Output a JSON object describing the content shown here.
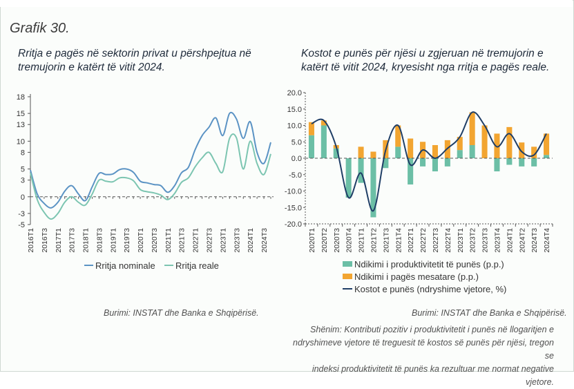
{
  "figure_label": "Grafik 30.",
  "left_panel": {
    "title_line1": "Rritja e pagës në sektorin privat u përshpejtua në",
    "title_line2": "tremujorin e katërt të vitit 2024.",
    "source": "Burimi: INSTAT dhe Banka e Shqipërisë."
  },
  "right_panel": {
    "title_line1": "Kostot e punës për njësi u zgjeruan në tremujorin e",
    "title_line2": "katërt të vitit 2024, kryesisht nga rritja e pagës reale.",
    "source": "Burimi: INSTAT dhe Banka e Shqipërisë.",
    "note_line1": "Shënim: Kontributi pozitiv i produktivitetit i punës në llogaritjen e",
    "note_line2": "ndryshimeve vjetore të treguesit të kostos së punës për njësi, tregon se",
    "note_line3": "indeksi produktivitetit të punës ka rezultuar me normat negative vjetore."
  },
  "colors": {
    "nominal": "#5b93c4",
    "real": "#7cc5b1",
    "productivity": "#6cbfa6",
    "wage": "#f2a531",
    "ulc": "#1f3e66",
    "axis": "#555555"
  },
  "chart_data": [
    {
      "type": "line",
      "ylim": [
        -5,
        18
      ],
      "yticks": [
        -5,
        -3,
        0,
        3,
        5,
        8,
        10,
        13,
        15,
        18
      ],
      "x_tick_labels": [
        "2016T1",
        "2016T3",
        "2017T1",
        "2017T3",
        "2018T1",
        "2018T3",
        "2019T1",
        "2019T3",
        "2020T1",
        "2020T3",
        "2021T1",
        "2021T3",
        "2022T1",
        "2022T3",
        "2023T1",
        "2023T3",
        "2024T1",
        "2024T3"
      ],
      "n_points": 36,
      "series": [
        {
          "name": "Rritja nominale",
          "values": [
            4.8,
            0.5,
            -1.2,
            -2.0,
            -1.0,
            1.0,
            2.0,
            0.5,
            -0.7,
            1.8,
            4.2,
            4.0,
            4.1,
            4.9,
            5.0,
            4.4,
            2.8,
            2.5,
            2.2,
            2.0,
            0.8,
            2.0,
            4.3,
            5.3,
            8.5,
            11.0,
            12.5,
            14.2,
            11.0,
            15.0,
            14.0,
            10.5,
            13.5,
            8.0,
            6.0,
            9.8
          ]
        },
        {
          "name": "Rritja reale",
          "values": [
            4.3,
            -0.5,
            -2.8,
            -4.0,
            -3.0,
            -1.0,
            0.0,
            -1.0,
            -1.5,
            0.5,
            3.0,
            2.8,
            2.7,
            3.4,
            3.4,
            2.9,
            1.3,
            0.9,
            0.7,
            0.3,
            -0.5,
            0.6,
            2.6,
            3.4,
            5.4,
            7.0,
            8.0,
            6.0,
            4.5,
            10.5,
            10.6,
            5.0,
            10.0,
            6.0,
            4.0,
            7.7
          ]
        }
      ]
    },
    {
      "type": "bar+line",
      "ylim": [
        -20,
        20
      ],
      "yticks": [
        "20.0",
        "15.0",
        "10.0",
        "5.0",
        "0.0",
        "-5.0",
        "-10.0",
        "-15.0",
        "-20.0"
      ],
      "categories": [
        "2020T1",
        "2020T2",
        "2020T3",
        "2020T4",
        "2021T1",
        "2021T2",
        "2021T3",
        "2021T4",
        "2022T1",
        "2022T2",
        "2022T3",
        "2022T4",
        "2023T1",
        "2023T2",
        "2023T3",
        "2023T4",
        "2024T1",
        "2024T2",
        "2024T3",
        "2024T4"
      ],
      "series": [
        {
          "name": "Ndikimi i produktivitetit të punës (p.p.)",
          "values": [
            7.0,
            10.0,
            3.0,
            -12.0,
            -7.5,
            -18.0,
            -3.0,
            3.5,
            -8.0,
            -2.5,
            -4.0,
            -2.5,
            2.5,
            4.0,
            0.0,
            -4.0,
            -2.0,
            -2.5,
            -2.5,
            1.0
          ]
        },
        {
          "name": "Ndikimi i pagës mesatare (p.p.)",
          "values": [
            4.0,
            1.5,
            1.0,
            0.0,
            3.5,
            2.0,
            5.5,
            6.5,
            6.0,
            5.0,
            4.0,
            5.5,
            4.0,
            10.0,
            10.0,
            7.5,
            9.5,
            4.8,
            3.5,
            6.5
          ]
        },
        {
          "name": "Kostot e punës (ndryshime vjetore, %)",
          "values": [
            10.5,
            11.5,
            3.5,
            -12.0,
            -4.5,
            -16.0,
            2.5,
            10.0,
            -2.0,
            2.5,
            0.0,
            3.0,
            6.5,
            14.0,
            10.0,
            3.5,
            7.5,
            2.0,
            1.0,
            7.5
          ]
        }
      ]
    }
  ]
}
